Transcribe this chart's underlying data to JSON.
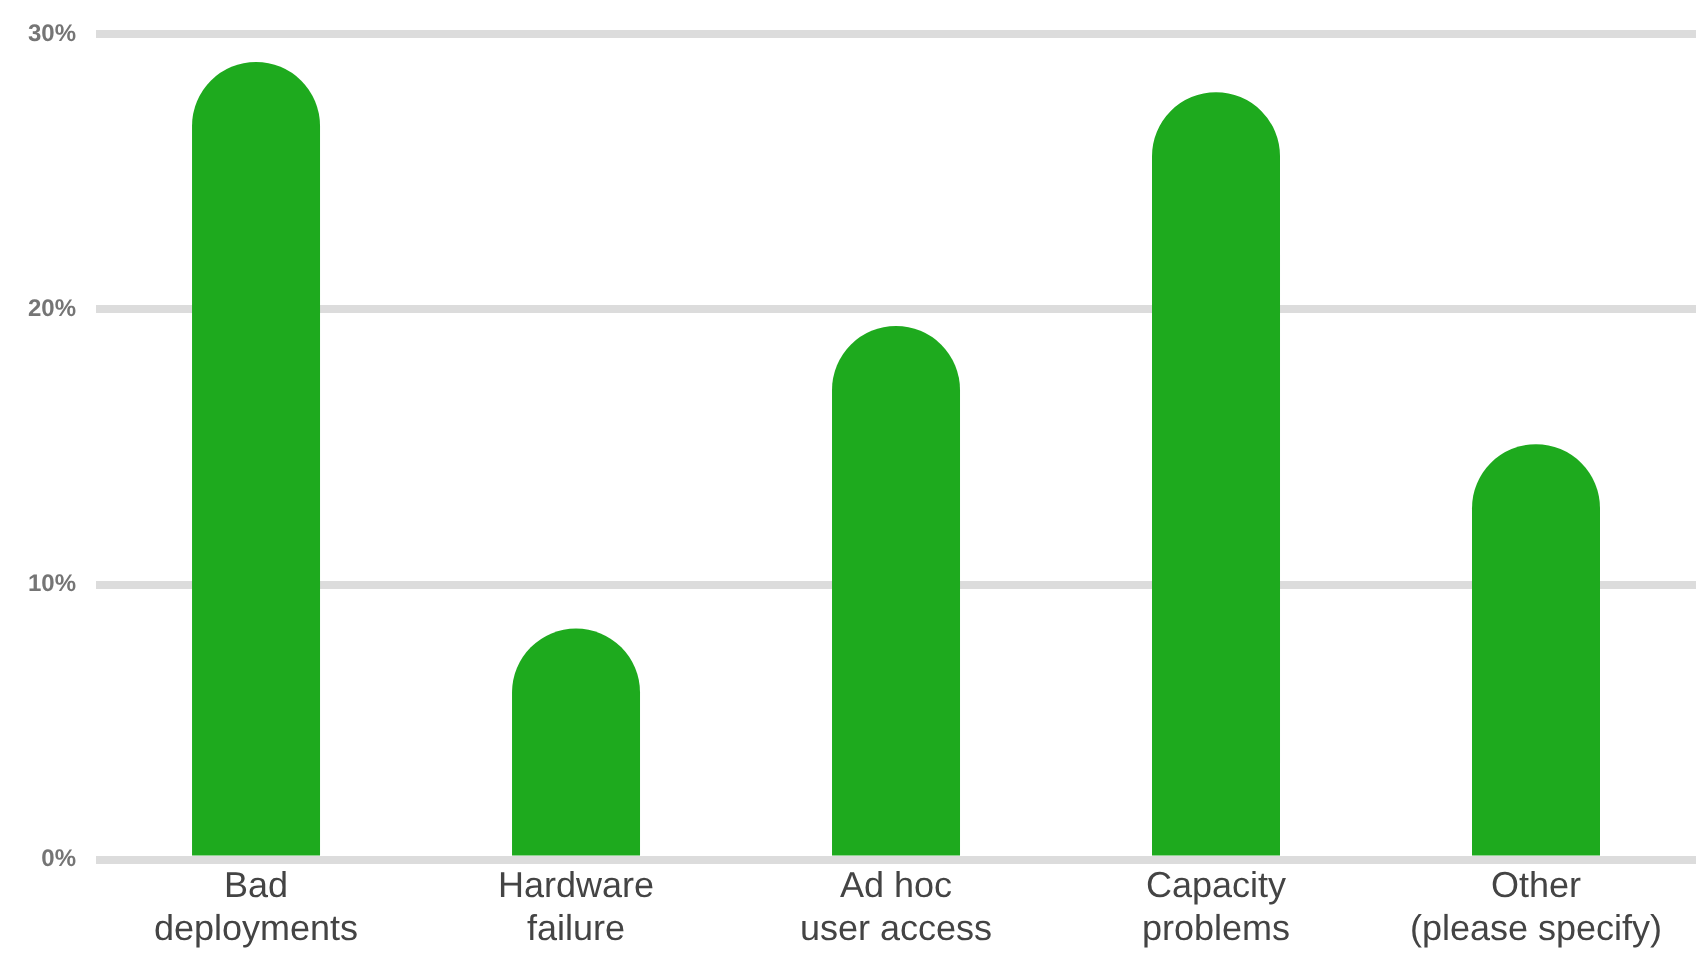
{
  "chart_data": {
    "type": "bar",
    "categories": [
      "Bad deployments",
      "Hardware failure",
      "Ad hoc user access",
      "Capacity problems",
      "Other (please specify)"
    ],
    "values": [
      29,
      8.4,
      19.4,
      27.9,
      15.1
    ],
    "color": "#1eaa1e",
    "ylim": [
      0,
      30
    ],
    "yticks": [
      {
        "value": 0,
        "label": "0%"
      },
      {
        "value": 10,
        "label": "10%"
      },
      {
        "value": 20,
        "label": "20%"
      },
      {
        "value": 30,
        "label": "30%"
      }
    ],
    "grid": "y",
    "legend": false
  }
}
